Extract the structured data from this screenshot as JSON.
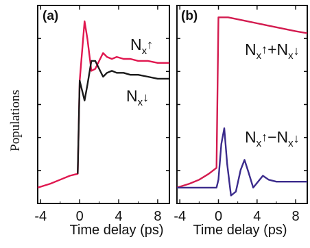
{
  "ylabel": "Populations",
  "xlabel": "Time delay (ps)",
  "colors": {
    "up": "#e0174f",
    "down": "#1a1a1a",
    "sum": "#d31b4f",
    "diff": "#3b2b8c"
  },
  "chart_data": [
    {
      "type": "line",
      "panel_label": "(a)",
      "xlabel": "Time delay (ps)",
      "ylabel": "Populations",
      "xlim": [
        -4.3,
        9.2
      ],
      "ylim": [
        0,
        1
      ],
      "xticks": [
        "-4",
        "0",
        "4",
        "8"
      ],
      "xtick_values": [
        -4,
        0,
        4,
        8
      ],
      "series": [
        {
          "name": "N_x↑",
          "label_main": "N",
          "label_sub": "x",
          "label_arrow": "↑",
          "x": [
            -4.3,
            -3,
            -2,
            -1,
            -0.2,
            0,
            0.5,
            0.8,
            1.2,
            1.6,
            2.0,
            2.4,
            2.8,
            3.3,
            3.8,
            4.5,
            5.2,
            6,
            7,
            8,
            9.2
          ],
          "y": [
            0.08,
            0.1,
            0.12,
            0.14,
            0.15,
            0.62,
            0.92,
            0.83,
            0.67,
            0.68,
            0.72,
            0.76,
            0.74,
            0.73,
            0.74,
            0.73,
            0.73,
            0.72,
            0.72,
            0.71,
            0.71
          ]
        },
        {
          "name": "N_x↓",
          "label_main": "N",
          "label_sub": "x",
          "label_arrow": "↓",
          "x": [
            -0.2,
            0,
            0.5,
            0.8,
            1.2,
            1.6,
            2.0,
            2.4,
            2.8,
            3.3,
            3.8,
            4.5,
            5.2,
            6,
            7,
            8,
            9.2
          ],
          "y": [
            0.15,
            0.62,
            0.52,
            0.6,
            0.72,
            0.72,
            0.68,
            0.64,
            0.66,
            0.67,
            0.66,
            0.66,
            0.65,
            0.65,
            0.64,
            0.63,
            0.63
          ]
        }
      ]
    },
    {
      "type": "line",
      "panel_label": "(b)",
      "xlabel": "Time delay (ps)",
      "xlim": [
        -4.3,
        9.2
      ],
      "ylim": [
        0,
        1
      ],
      "xticks": [
        "-4",
        "0",
        "4",
        "8"
      ],
      "xtick_values": [
        -4,
        0,
        4,
        8
      ],
      "series": [
        {
          "name": "N_x↑+N_x↓",
          "label_parts": [
            "N",
            "x",
            "↑",
            "+N",
            "x",
            "↓"
          ],
          "x": [
            -4.3,
            -3,
            -2,
            -1,
            -0.2,
            0,
            0.5,
            1,
            2,
            3,
            4,
            5,
            6,
            7,
            8,
            9.2
          ],
          "y": [
            0.08,
            0.1,
            0.12,
            0.15,
            0.18,
            0.94,
            0.94,
            0.94,
            0.93,
            0.92,
            0.91,
            0.9,
            0.89,
            0.88,
            0.87,
            0.86
          ]
        },
        {
          "name": "N_x↑−N_x↓",
          "label_parts": [
            "N",
            "x",
            "↑",
            "−N",
            "x",
            "↓"
          ],
          "x": [
            -4.3,
            -3,
            -2,
            -1,
            -0.2,
            0,
            0.3,
            0.6,
            0.9,
            1.3,
            1.8,
            2.3,
            2.7,
            3.1,
            3.6,
            4.1,
            4.6,
            5.2,
            6,
            7,
            8,
            9.2
          ],
          "y": [
            0.08,
            0.08,
            0.08,
            0.08,
            0.08,
            0.12,
            0.3,
            0.38,
            0.2,
            0.04,
            0.06,
            0.17,
            0.22,
            0.16,
            0.08,
            0.11,
            0.14,
            0.12,
            0.11,
            0.11,
            0.11,
            0.11
          ]
        }
      ]
    }
  ]
}
